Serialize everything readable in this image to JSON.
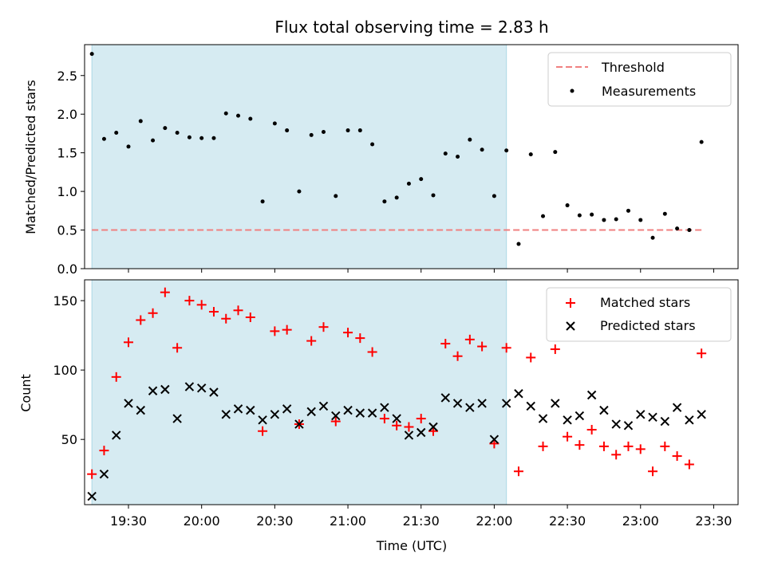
{
  "chart_data": [
    {
      "type": "scatter",
      "title": "Flux total observing time = 2.83 h",
      "xlabel": "",
      "ylabel": "Matched/Predicted stars",
      "ylim": [
        0,
        2.9
      ],
      "xlim": [
        "19:12",
        "23:40"
      ],
      "yticks": [
        "0.0",
        "0.5",
        "1.0",
        "1.5",
        "2.0",
        "2.5"
      ],
      "grid": false,
      "legend_position": "top-right",
      "observing_window": [
        "19:15",
        "22:05"
      ],
      "threshold": {
        "name": "Threshold",
        "value": 0.5,
        "color": "#f08080"
      },
      "series": [
        {
          "name": "Measurements",
          "color": "#000000",
          "x": [
            "19:15",
            "19:20",
            "19:25",
            "19:30",
            "19:35",
            "19:40",
            "19:45",
            "19:50",
            "19:55",
            "20:00",
            "20:05",
            "20:10",
            "20:15",
            "20:20",
            "20:25",
            "20:30",
            "20:35",
            "20:40",
            "20:45",
            "20:50",
            "20:55",
            "21:00",
            "21:05",
            "21:10",
            "21:15",
            "21:20",
            "21:25",
            "21:30",
            "21:35",
            "21:40",
            "21:45",
            "21:50",
            "21:55",
            "22:00",
            "22:05",
            "22:10",
            "22:15",
            "22:20",
            "22:25",
            "22:30",
            "22:35",
            "22:40",
            "22:45",
            "22:50",
            "22:55",
            "23:00",
            "23:05",
            "23:10",
            "23:15",
            "23:20",
            "23:25"
          ],
          "y": [
            2.78,
            1.68,
            1.76,
            1.58,
            1.91,
            1.66,
            1.82,
            1.76,
            1.7,
            1.69,
            1.69,
            2.01,
            1.98,
            1.94,
            0.87,
            1.88,
            1.79,
            1.0,
            1.73,
            1.77,
            0.94,
            1.79,
            1.79,
            1.61,
            0.87,
            0.92,
            1.1,
            1.16,
            0.95,
            1.49,
            1.45,
            1.67,
            1.54,
            0.94,
            1.53,
            0.32,
            1.48,
            0.68,
            1.51,
            0.82,
            0.69,
            0.7,
            0.63,
            0.64,
            0.75,
            0.63,
            0.4,
            0.71,
            0.52,
            0.5,
            1.64
          ]
        }
      ]
    },
    {
      "type": "scatter",
      "title": "",
      "xlabel": "Time (UTC)",
      "ylabel": "Count",
      "ylim": [
        3,
        165
      ],
      "xlim": [
        "19:12",
        "23:40"
      ],
      "yticks": [
        "50",
        "100",
        "150"
      ],
      "xticks": [
        "19:30",
        "20:00",
        "20:30",
        "21:00",
        "21:30",
        "22:00",
        "22:30",
        "23:00",
        "23:30"
      ],
      "grid": false,
      "legend_position": "top-right",
      "observing_window": [
        "19:15",
        "22:05"
      ],
      "series": [
        {
          "name": "Matched stars",
          "marker": "+",
          "color": "#ff0000",
          "x": [
            "19:15",
            "19:20",
            "19:25",
            "19:30",
            "19:35",
            "19:40",
            "19:45",
            "19:50",
            "19:55",
            "20:00",
            "20:05",
            "20:10",
            "20:15",
            "20:20",
            "20:25",
            "20:30",
            "20:35",
            "20:40",
            "20:45",
            "20:50",
            "20:55",
            "21:00",
            "21:05",
            "21:10",
            "21:15",
            "21:20",
            "21:25",
            "21:30",
            "21:35",
            "21:40",
            "21:45",
            "21:50",
            "21:55",
            "22:00",
            "22:05",
            "22:10",
            "22:15",
            "22:20",
            "22:25",
            "22:30",
            "22:35",
            "22:40",
            "22:45",
            "22:50",
            "22:55",
            "23:00",
            "23:05",
            "23:10",
            "23:15",
            "23:20",
            "23:25"
          ],
          "y": [
            25,
            42,
            95,
            120,
            136,
            141,
            156,
            116,
            150,
            147,
            142,
            137,
            143,
            138,
            56,
            128,
            129,
            61,
            121,
            131,
            63,
            127,
            123,
            113,
            65,
            60,
            59,
            65,
            56,
            119,
            110,
            122,
            117,
            47,
            116,
            27,
            109,
            45,
            115,
            52,
            46,
            57,
            45,
            39,
            45,
            43,
            27,
            45,
            38,
            32,
            112
          ]
        },
        {
          "name": "Predicted stars",
          "marker": "x",
          "color": "#000000",
          "x": [
            "19:15",
            "19:20",
            "19:25",
            "19:30",
            "19:35",
            "19:40",
            "19:45",
            "19:50",
            "19:55",
            "20:00",
            "20:05",
            "20:10",
            "20:15",
            "20:20",
            "20:25",
            "20:30",
            "20:35",
            "20:40",
            "20:45",
            "20:50",
            "20:55",
            "21:00",
            "21:05",
            "21:10",
            "21:15",
            "21:20",
            "21:25",
            "21:30",
            "21:35",
            "21:40",
            "21:45",
            "21:50",
            "21:55",
            "22:00",
            "22:05",
            "22:10",
            "22:15",
            "22:20",
            "22:25",
            "22:30",
            "22:35",
            "22:40",
            "22:45",
            "22:50",
            "22:55",
            "23:00",
            "23:05",
            "23:10",
            "23:15",
            "23:20",
            "23:25"
          ],
          "y": [
            9,
            25,
            53,
            76,
            71,
            85,
            86,
            65,
            88,
            87,
            84,
            68,
            72,
            71,
            64,
            68,
            72,
            61,
            70,
            74,
            67,
            71,
            69,
            69,
            73,
            65,
            53,
            55,
            59,
            80,
            76,
            73,
            76,
            50,
            76,
            83,
            74,
            65,
            76,
            64,
            67,
            82,
            71,
            61,
            60,
            68,
            66,
            63,
            73,
            64,
            68
          ]
        }
      ]
    }
  ]
}
